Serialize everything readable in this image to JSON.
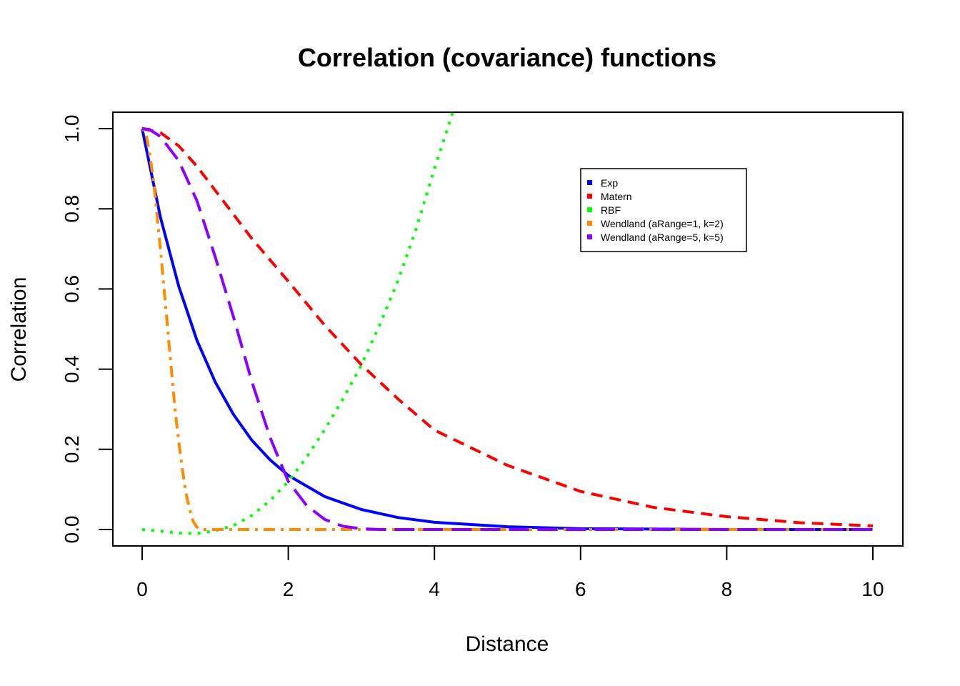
{
  "chart_data": {
    "type": "line",
    "title": "Correlation (covariance) functions",
    "xlabel": "Distance",
    "ylabel": "Correlation",
    "xlim": [
      0,
      10
    ],
    "ylim": [
      0,
      1
    ],
    "xticks": [
      0,
      2,
      4,
      6,
      8,
      10
    ],
    "yticks": [
      0.0,
      0.2,
      0.4,
      0.6,
      0.8,
      1.0
    ],
    "ytick_labels": [
      "0.0",
      "0.2",
      "0.4",
      "0.6",
      "0.8",
      "1.0"
    ],
    "grid": false,
    "legend_position": "top-right",
    "series": [
      {
        "name": "Exp",
        "color": "#0000FF",
        "dash": "solid",
        "x": [
          0,
          0.25,
          0.5,
          0.75,
          1,
          1.25,
          1.5,
          1.75,
          2,
          2.5,
          3,
          3.5,
          4,
          5,
          6,
          7,
          8,
          9,
          10
        ],
        "y": [
          1.0,
          0.779,
          0.607,
          0.472,
          0.368,
          0.287,
          0.223,
          0.174,
          0.135,
          0.082,
          0.05,
          0.03,
          0.018,
          0.007,
          0.002,
          0.001,
          0.0,
          0.0,
          0.0
        ]
      },
      {
        "name": "Matern",
        "color": "#FF0000",
        "dash": "dashed",
        "x": [
          0,
          0.25,
          0.5,
          0.75,
          1,
          1.5,
          2,
          2.5,
          3,
          3.5,
          4,
          5,
          6,
          7,
          8,
          9,
          10
        ],
        "y": [
          1.0,
          0.99,
          0.957,
          0.906,
          0.846,
          0.726,
          0.619,
          0.509,
          0.411,
          0.326,
          0.248,
          0.16,
          0.095,
          0.055,
          0.032,
          0.017,
          0.009
        ]
      },
      {
        "name": "RBF",
        "color": "#00FF00",
        "dash": "dotted",
        "x": [
          0,
          0.25,
          0.5,
          0.75,
          1,
          1.25,
          1.5,
          1.75,
          2,
          2.25,
          2.5,
          2.75,
          3,
          3.25,
          3.5,
          3.75,
          4,
          4.25
        ],
        "y": [
          0.0,
          -0.004,
          -0.009,
          -0.01,
          -0.003,
          0.01,
          0.035,
          0.072,
          0.12,
          0.18,
          0.25,
          0.326,
          0.41,
          0.51,
          0.62,
          0.75,
          0.9,
          1.04
        ]
      },
      {
        "name": "Wendland (aRange=1, k=2)",
        "color": "#FF8C00",
        "dash": "dotdash",
        "x": [
          0,
          0.05,
          0.1,
          0.15,
          0.2,
          0.25,
          0.3,
          0.35,
          0.4,
          0.45,
          0.5,
          0.55,
          0.6,
          0.65,
          0.7,
          0.75,
          0.8,
          1,
          2,
          4,
          6,
          8,
          10
        ],
        "y": [
          1.0,
          0.99,
          0.94,
          0.88,
          0.79,
          0.7,
          0.6,
          0.5,
          0.4,
          0.3,
          0.22,
          0.15,
          0.09,
          0.05,
          0.02,
          0.006,
          0.0,
          0.0,
          0.0,
          0.0,
          0.0,
          0.0,
          0.0
        ]
      },
      {
        "name": "Wendland (aRange=5, k=5)",
        "color": "#8B00FF",
        "dash": "longdash",
        "x": [
          0,
          0.1,
          0.25,
          0.5,
          0.75,
          1,
          1.25,
          1.5,
          1.75,
          2,
          2.25,
          2.5,
          2.75,
          3,
          3.25,
          3.5,
          4,
          6,
          8,
          10
        ],
        "y": [
          1.0,
          0.998,
          0.98,
          0.92,
          0.82,
          0.68,
          0.53,
          0.37,
          0.23,
          0.12,
          0.06,
          0.025,
          0.008,
          0.002,
          0.0,
          0.0,
          0.0,
          0.0,
          0.0,
          0.0
        ]
      }
    ]
  }
}
